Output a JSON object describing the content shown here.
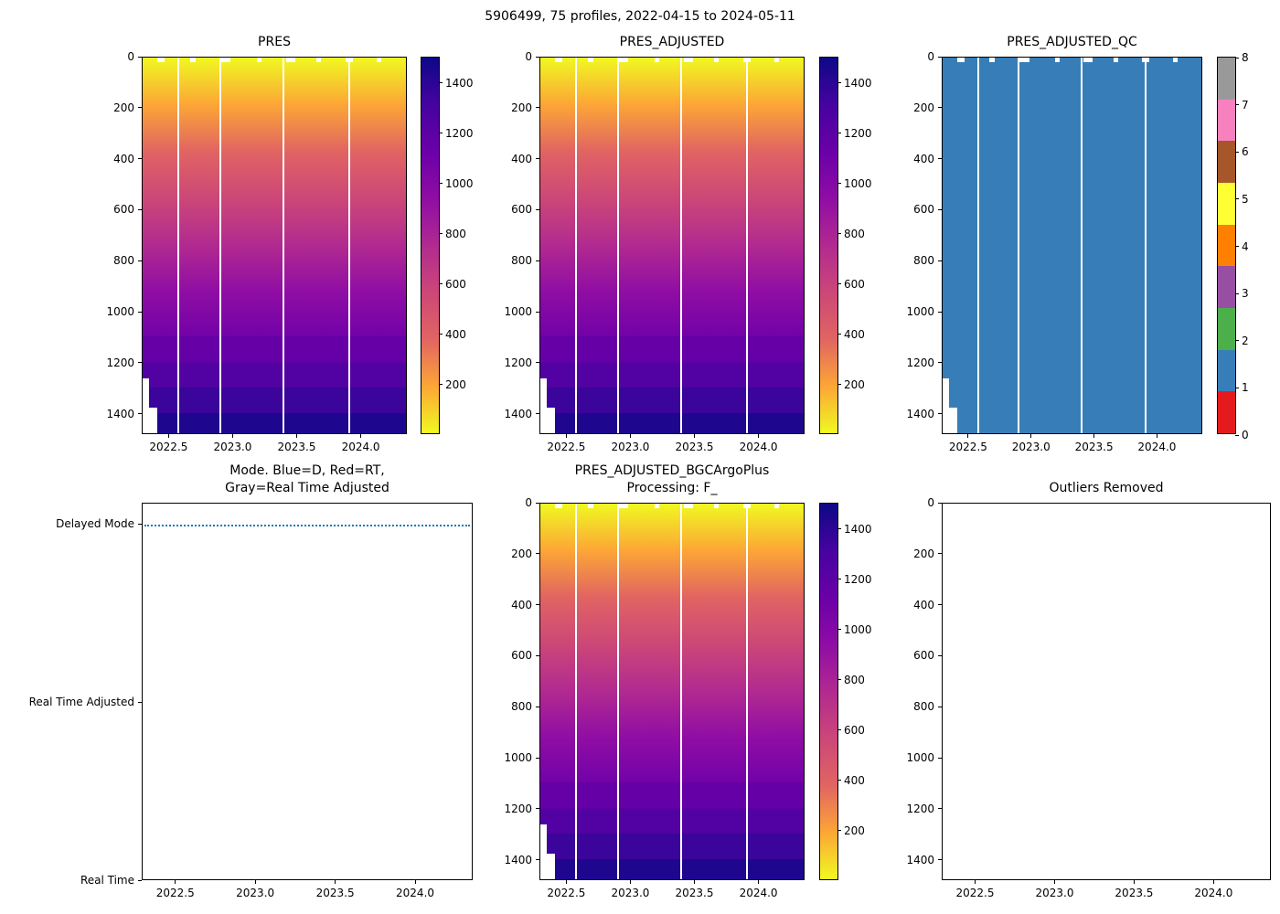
{
  "figure": {
    "title": "5906499, 75 profiles, 2022-04-15 to 2024-05-11",
    "background": "#ffffff"
  },
  "colors": {
    "qc_fill": "#377eb8",
    "mode_line": "#1f77b4",
    "axis": "#000000",
    "gap_white": "#ffffff"
  },
  "colormap": {
    "name": "plasma reversed on depth axis (yellow = low pressure at surface, dark navy = high pressure at depth)",
    "heat_stops": [
      [
        0,
        "#f0f921"
      ],
      [
        0.125,
        "#fca636"
      ],
      [
        0.25,
        "#e16462"
      ],
      [
        0.375,
        "#cc4778"
      ],
      [
        0.5,
        "#b12a90"
      ],
      [
        0.625,
        "#8f0da4"
      ],
      [
        0.74,
        "#7302a8"
      ],
      [
        0.743,
        "#6500a7"
      ],
      [
        0.811,
        "#6500a7"
      ],
      [
        0.8112,
        "#5202a2"
      ],
      [
        0.878,
        "#5202a2"
      ],
      [
        0.8782,
        "#3b049a"
      ],
      [
        0.946,
        "#3b049a"
      ],
      [
        0.9462,
        "#1f068f"
      ],
      [
        1,
        "#1f068f"
      ]
    ],
    "cbar_stops": [
      [
        0,
        "#0d0887"
      ],
      [
        0.125,
        "#46039f"
      ],
      [
        0.25,
        "#6a00a8"
      ],
      [
        0.375,
        "#8f0da4"
      ],
      [
        0.5,
        "#b12a90"
      ],
      [
        0.625,
        "#cc4778"
      ],
      [
        0.75,
        "#e16462"
      ],
      [
        0.875,
        "#fca636"
      ],
      [
        1,
        "#f0f921"
      ]
    ]
  },
  "colorbar": {
    "ticks": [
      200,
      400,
      600,
      800,
      1000,
      1200,
      1400
    ],
    "vmin": 0,
    "vmax": 1500
  },
  "qc_colorbar": {
    "ticks": [
      0,
      1,
      2,
      3,
      4,
      5,
      6,
      7,
      8
    ],
    "colors": [
      "#e41a1c",
      "#377eb8",
      "#4daf4a",
      "#984ea3",
      "#ff7f00",
      "#ffff33",
      "#a65628",
      "#f781bf",
      "#999999"
    ]
  },
  "chart_data": [
    {
      "type": "heatmap",
      "title": "PRES",
      "x_range": [
        2022.29,
        2024.36
      ],
      "x_ticks": [
        2022.5,
        2023.0,
        2023.5,
        2024.0
      ],
      "y_range": [
        0,
        1480
      ],
      "y_ticks": [
        0,
        200,
        400,
        600,
        800,
        1000,
        1200,
        1400
      ],
      "colorbar_ticks": [
        200,
        400,
        600,
        800,
        1000,
        1200,
        1400
      ],
      "color_range": [
        0,
        1500
      ],
      "n_profiles": 75,
      "values_summary": "PRES equals depth for every profile: ~0 dbar at the surface increasing to ~1480 dbar at the deepest bin, identical across all 75 profiles (horizontal color bands); the first few profiles end shallower (~1280-1400 dbar) leaving a white step in the lower-left corner; thin white vertical gaps mark missing profiles"
    },
    {
      "type": "heatmap",
      "title": "PRES_ADJUSTED",
      "x_range": [
        2022.29,
        2024.36
      ],
      "x_ticks": [
        2022.5,
        2023.0,
        2023.5,
        2024.0
      ],
      "y_range": [
        0,
        1480
      ],
      "y_ticks": [
        0,
        200,
        400,
        600,
        800,
        1000,
        1200,
        1400
      ],
      "colorbar_ticks": [
        200,
        400,
        600,
        800,
        1000,
        1200,
        1400
      ],
      "color_range": [
        0,
        1500
      ],
      "n_profiles": 75,
      "values_summary": "Identical field to PRES: adjusted pressure increases from ~0 dbar at surface to ~1480 dbar at depth for all profiles"
    },
    {
      "type": "heatmap",
      "title": "PRES_ADJUSTED_QC",
      "x_range": [
        2022.29,
        2024.36
      ],
      "x_ticks": [
        2022.5,
        2023.0,
        2023.5,
        2024.0
      ],
      "y_range": [
        0,
        1480
      ],
      "y_ticks": [
        0,
        200,
        400,
        600,
        800,
        1000,
        1200,
        1400
      ],
      "colorbar_ticks": [
        0,
        1,
        2,
        3,
        4,
        5,
        6,
        7,
        8
      ],
      "colorbar_colors": [
        "#e41a1c",
        "#377eb8",
        "#4daf4a",
        "#984ea3",
        "#ff7f00",
        "#ffff33",
        "#a65628",
        "#f781bf",
        "#999999"
      ],
      "values_summary": "QC flag = 1 (good data, blue) for essentially every point of every profile"
    },
    {
      "type": "line",
      "title": "Mode. Blue=D, Red=RT,\nGray=Real Time Adjusted",
      "x_range": [
        2022.29,
        2024.36
      ],
      "x_ticks": [
        2022.5,
        2023.0,
        2023.5,
        2024.0
      ],
      "y_range": [
        0,
        2.12
      ],
      "y_categories": [
        "Real Time",
        "Real Time Adjusted",
        "Delayed Mode"
      ],
      "series": [
        {
          "name": "mode",
          "style": "dotted",
          "color": "#1f77b4",
          "constant_value": "Delayed Mode"
        }
      ],
      "values_summary": "All 75 profiles are in Delayed Mode: a dotted blue horizontal line sits at the Delayed Mode level across the whole time range"
    },
    {
      "type": "heatmap",
      "title": "PRES_ADJUSTED_BGCArgoPlus\nProcessing: F_",
      "x_range": [
        2022.29,
        2024.36
      ],
      "x_ticks": [
        2022.5,
        2023.0,
        2023.5,
        2024.0
      ],
      "y_range": [
        0,
        1480
      ],
      "y_ticks": [
        0,
        200,
        400,
        600,
        800,
        1000,
        1200,
        1400
      ],
      "colorbar_ticks": [
        200,
        400,
        600,
        800,
        1000,
        1200,
        1400
      ],
      "color_range": [
        0,
        1500
      ],
      "values_summary": "Same pressure field as PRES / PRES_ADJUSTED: ~0 dbar at surface to ~1480 dbar at depth for all profiles"
    },
    {
      "type": "empty",
      "title": "Outliers Removed",
      "x_range": [
        2022.29,
        2024.36
      ],
      "x_ticks": [
        2022.5,
        2023.0,
        2023.5,
        2024.0
      ],
      "y_range": [
        0,
        1480
      ],
      "y_ticks": [
        0,
        200,
        400,
        600,
        800,
        1000,
        1200,
        1400
      ],
      "values_summary": "Empty axes: no outliers were removed"
    }
  ]
}
